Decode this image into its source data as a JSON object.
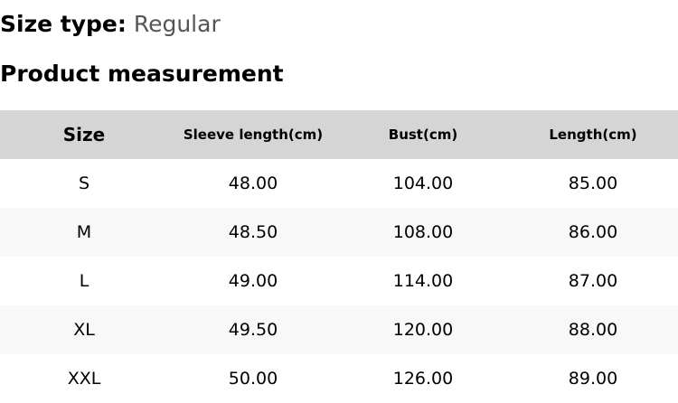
{
  "size_type": {
    "label": "Size type:",
    "value": "Regular"
  },
  "section_title": "Product measurement",
  "table": {
    "headers": [
      "Size",
      "Sleeve length(cm)",
      "Bust(cm)",
      "Length(cm)"
    ],
    "rows": [
      [
        "S",
        "48.00",
        "104.00",
        "85.00"
      ],
      [
        "M",
        "48.50",
        "108.00",
        "86.00"
      ],
      [
        "L",
        "49.00",
        "114.00",
        "87.00"
      ],
      [
        "XL",
        "49.50",
        "120.00",
        "88.00"
      ],
      [
        "XXL",
        "50.00",
        "126.00",
        "89.00"
      ]
    ]
  }
}
